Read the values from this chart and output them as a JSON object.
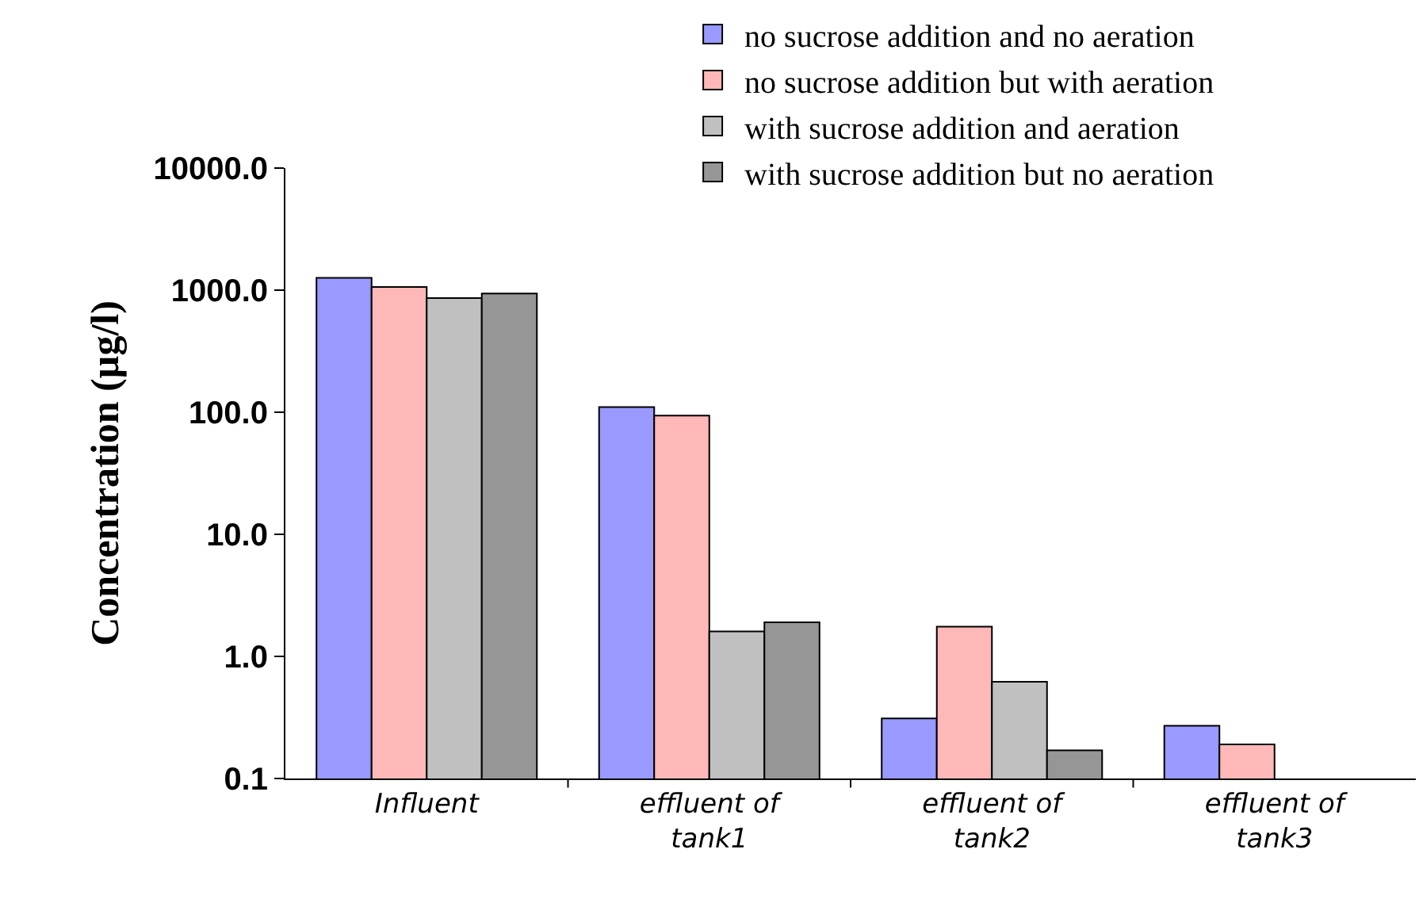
{
  "chart_data": {
    "type": "bar",
    "ylabel": "Concentration (µg/l)",
    "categories": [
      "Influent",
      "effluent of tank1",
      "effluent of tank2",
      "effluent of tank3"
    ],
    "series": [
      {
        "name": "no sucrose addition and no aeration",
        "color": "#9999ff",
        "values": [
          1260,
          110,
          0.31,
          0.27
        ]
      },
      {
        "name": "no sucrose addition but with aeration",
        "color": "#ffb8b8",
        "values": [
          1060,
          94,
          1.75,
          0.19
        ]
      },
      {
        "name": "with sucrose addition and aeration",
        "color": "#c0c0c0",
        "values": [
          860,
          1.6,
          0.62,
          null
        ]
      },
      {
        "name": "with sucrose addition but no aeration",
        "color": "#969696",
        "values": [
          940,
          1.9,
          0.17,
          null
        ]
      }
    ],
    "log": true,
    "ylim": [
      0.1,
      10000
    ],
    "yticks": [
      {
        "value": 0.1,
        "label": "0.1"
      },
      {
        "value": 1,
        "label": "1.0"
      },
      {
        "value": 10,
        "label": "10.0"
      },
      {
        "value": 100,
        "label": "100.0"
      },
      {
        "value": 1000,
        "label": "1000.0"
      },
      {
        "value": 10000,
        "label": "10000.0"
      }
    ],
    "grid": false,
    "legend": "top right"
  }
}
